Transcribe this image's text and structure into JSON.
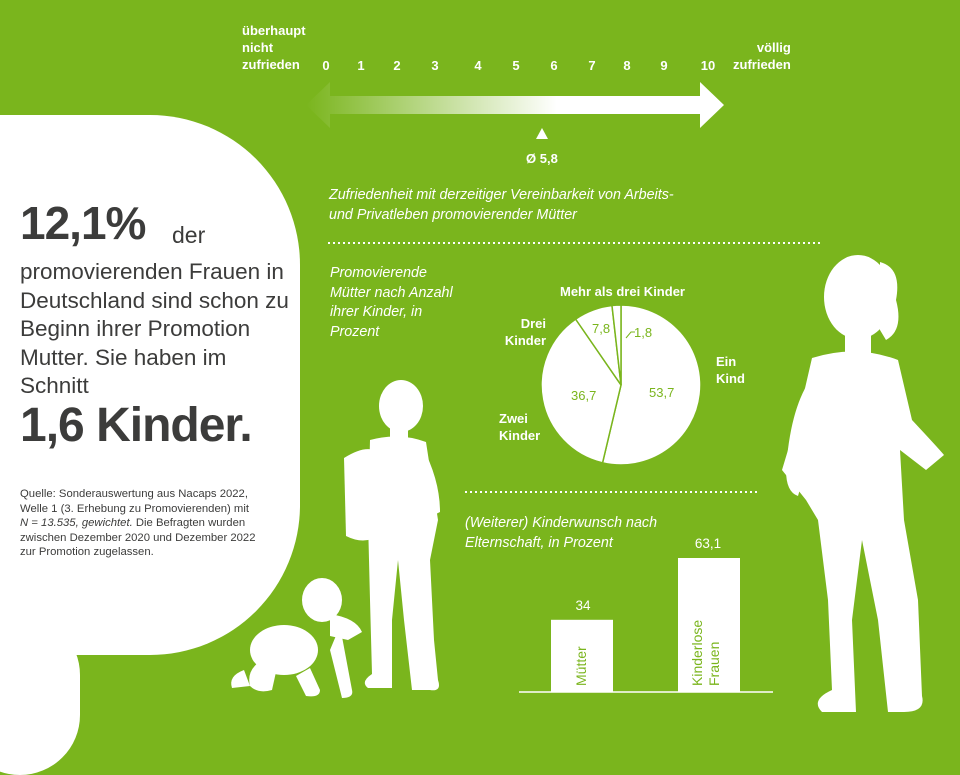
{
  "headline": {
    "percent": "12,1%",
    "der": "der",
    "intro": "promovierenden Frauen in Deutschland sind schon zu Beginn ihrer Promotion Mutter. Sie haben im Schnitt",
    "kinder": "1,6 Kinder."
  },
  "source": {
    "part1": "Quelle: Sonderauswertung aus Nacaps 2022, Welle 1 (3. Erhebung zu Promovierenden) mit ",
    "italic": "N = 13.535, gewichtet.",
    "part2": " Die Befragten wurden zwischen Dezember 2020 und Dezember 2022 zur Promotion zugelassen."
  },
  "colors": {
    "background": "#7ab51d",
    "panel": "#ffffff",
    "dark_text": "#3c3c3b",
    "pie_lines": "#7ab51d"
  },
  "chart_data": [
    {
      "type": "scale",
      "title": "Zufriedenheit mit derzeitiger Vereinbarkeit von Arbeits- und Privatleben promovierender Mütter",
      "title_lines": [
        "Zufriedenheit mit derzeitiger Vereinbarkeit von Arbeits-",
        "und Privatleben promovierender Mütter"
      ],
      "left_label": [
        "überhaupt",
        "nicht",
        "zufrieden"
      ],
      "right_label": [
        "völlig",
        "zufrieden"
      ],
      "ticks": [
        "0",
        "1",
        "2",
        "3",
        "4",
        "5",
        "6",
        "7",
        "8",
        "9",
        "10"
      ],
      "range": [
        0,
        10
      ],
      "mean": 5.8,
      "mean_label": "Ø 5,8"
    },
    {
      "type": "pie",
      "title": "Promovierende Mütter nach Anzahl ihrer Kinder, in Prozent",
      "title_lines": [
        "Promovierende",
        "Mütter nach Anzahl",
        "ihrer Kinder, in",
        "Prozent"
      ],
      "categories": [
        "Ein Kind",
        "Zwei Kinder",
        "Drei Kinder",
        "Mehr als drei Kinder"
      ],
      "category_lines": [
        [
          "Ein",
          "Kind"
        ],
        [
          "Zwei",
          "Kinder"
        ],
        [
          "Drei",
          "Kinder"
        ],
        [
          "Mehr als drei Kinder"
        ]
      ],
      "values": [
        53.7,
        36.7,
        7.8,
        1.8
      ],
      "value_labels": [
        "53,7",
        "36,7",
        "7,8",
        "1,8"
      ]
    },
    {
      "type": "bar",
      "title": "(Weiterer) Kinderwunsch nach Elternschaft, in Prozent",
      "title_lines": [
        "(Weiterer) Kinderwunsch nach",
        "Elternschaft, in Prozent"
      ],
      "categories": [
        "Mütter",
        "Kinderlose Frauen"
      ],
      "category_lines": [
        [
          "Mütter"
        ],
        [
          "Kinderlose",
          "Frauen"
        ]
      ],
      "values": [
        34,
        63.1
      ],
      "value_labels": [
        "34",
        "63,1"
      ],
      "ylim": [
        0,
        63.1
      ]
    }
  ]
}
